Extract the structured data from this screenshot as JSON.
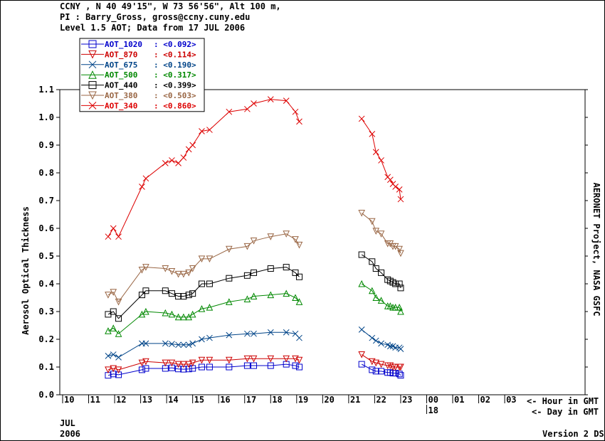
{
  "header": {
    "line1": "CCNY , N 40 49'15\", W 73 56'56\", Alt 100 m,",
    "line2": "PI : Barry_Gross, gross@ccny.cuny.edu",
    "line3": "Level 1.5 AOT; Data from 17 JUL 2006"
  },
  "footer": {
    "month": "JUL",
    "year": "2006",
    "version": "Version 2 DS",
    "hour_note": "<- Hour in GMT",
    "day_note": "<- Day in GMT",
    "day_label": "18",
    "side_label": "AERONET Project, NASA GSFC"
  },
  "chart_data": {
    "type": "line",
    "title": "",
    "xlabel": "",
    "ylabel": "Aerosol Optical Thickness",
    "xlim": [
      10,
      4
    ],
    "x_ticks": [
      "10",
      "11",
      "12",
      "13",
      "14",
      "15",
      "16",
      "17",
      "18",
      "19",
      "20",
      "21",
      "22",
      "23",
      "00",
      "01",
      "02",
      "03"
    ],
    "ylim": [
      0.0,
      1.1
    ],
    "y_ticks": [
      "0.0",
      "0.1",
      "0.2",
      "0.3",
      "0.4",
      "0.5",
      "0.6",
      "0.7",
      "0.8",
      "0.9",
      "1.0",
      "1.1"
    ],
    "legend_position": "top-left",
    "series": [
      {
        "name": "AOT_1020",
        "mean": "<0.092>",
        "color": "#0000cc",
        "marker": "square",
        "x": [
          11.75,
          11.95,
          12.15,
          13.05,
          13.2,
          13.95,
          14.2,
          14.45,
          14.65,
          14.85,
          15.0,
          15.35,
          15.65,
          16.4,
          17.1,
          17.35,
          18.0,
          18.6,
          18.95,
          19.1,
          21.5,
          21.9,
          22.05,
          22.25,
          22.5,
          22.6,
          22.7,
          22.8,
          22.95,
          23.0
        ],
        "y": [
          0.07,
          0.075,
          0.072,
          0.09,
          0.095,
          0.095,
          0.097,
          0.093,
          0.092,
          0.093,
          0.095,
          0.1,
          0.1,
          0.1,
          0.105,
          0.105,
          0.105,
          0.11,
          0.105,
          0.1,
          0.11,
          0.09,
          0.085,
          0.085,
          0.08,
          0.08,
          0.078,
          0.078,
          0.075,
          0.07
        ]
      },
      {
        "name": "AOT_870",
        "mean": "<0.114>",
        "color": "#cc0000",
        "marker": "triangle-down",
        "x": [
          11.75,
          11.95,
          12.15,
          13.05,
          13.2,
          13.95,
          14.2,
          14.45,
          14.65,
          14.85,
          15.0,
          15.35,
          15.65,
          16.4,
          17.1,
          17.35,
          18.0,
          18.6,
          18.95,
          19.1,
          21.5,
          21.9,
          22.05,
          22.25,
          22.5,
          22.6,
          22.7,
          22.8,
          22.95,
          23.0
        ],
        "y": [
          0.09,
          0.095,
          0.09,
          0.115,
          0.12,
          0.115,
          0.115,
          0.11,
          0.11,
          0.11,
          0.115,
          0.125,
          0.125,
          0.125,
          0.13,
          0.13,
          0.13,
          0.13,
          0.13,
          0.125,
          0.145,
          0.12,
          0.115,
          0.11,
          0.105,
          0.105,
          0.1,
          0.1,
          0.1,
          0.1
        ]
      },
      {
        "name": "AOT_675",
        "mean": "<0.190>",
        "color": "#004488",
        "marker": "x",
        "x": [
          11.75,
          11.95,
          12.15,
          13.05,
          13.2,
          13.95,
          14.2,
          14.45,
          14.65,
          14.85,
          15.0,
          15.35,
          15.65,
          16.4,
          17.1,
          17.35,
          18.0,
          18.6,
          18.95,
          19.1,
          21.5,
          21.9,
          22.05,
          22.25,
          22.5,
          22.6,
          22.7,
          22.8,
          22.95,
          23.0
        ],
        "y": [
          0.14,
          0.145,
          0.135,
          0.185,
          0.185,
          0.185,
          0.183,
          0.18,
          0.18,
          0.18,
          0.185,
          0.2,
          0.205,
          0.215,
          0.22,
          0.22,
          0.225,
          0.225,
          0.22,
          0.205,
          0.235,
          0.205,
          0.195,
          0.185,
          0.18,
          0.175,
          0.175,
          0.17,
          0.17,
          0.165
        ]
      },
      {
        "name": "AOT_500",
        "mean": "<0.317>",
        "color": "#008800",
        "marker": "triangle-up",
        "x": [
          11.75,
          11.95,
          12.15,
          13.05,
          13.2,
          13.95,
          14.2,
          14.45,
          14.65,
          14.85,
          15.0,
          15.35,
          15.65,
          16.4,
          17.1,
          17.35,
          18.0,
          18.6,
          18.95,
          19.1,
          21.5,
          21.9,
          22.05,
          22.25,
          22.5,
          22.6,
          22.7,
          22.8,
          22.95,
          23.0
        ],
        "y": [
          0.23,
          0.24,
          0.22,
          0.29,
          0.3,
          0.295,
          0.29,
          0.28,
          0.28,
          0.28,
          0.29,
          0.31,
          0.315,
          0.335,
          0.345,
          0.355,
          0.36,
          0.365,
          0.35,
          0.335,
          0.4,
          0.375,
          0.35,
          0.34,
          0.32,
          0.32,
          0.315,
          0.315,
          0.315,
          0.3
        ]
      },
      {
        "name": "AOT_440",
        "mean": "<0.399>",
        "color": "#000000",
        "marker": "square",
        "x": [
          11.75,
          11.95,
          12.15,
          13.05,
          13.2,
          13.95,
          14.2,
          14.45,
          14.65,
          14.85,
          15.0,
          15.35,
          15.65,
          16.4,
          17.1,
          17.35,
          18.0,
          18.6,
          18.95,
          19.1,
          21.5,
          21.9,
          22.05,
          22.25,
          22.5,
          22.6,
          22.7,
          22.8,
          22.95,
          23.0
        ],
        "y": [
          0.29,
          0.3,
          0.275,
          0.36,
          0.375,
          0.375,
          0.365,
          0.355,
          0.355,
          0.36,
          0.365,
          0.4,
          0.4,
          0.42,
          0.43,
          0.44,
          0.455,
          0.46,
          0.44,
          0.425,
          0.505,
          0.48,
          0.455,
          0.44,
          0.415,
          0.41,
          0.405,
          0.4,
          0.4,
          0.385
        ]
      },
      {
        "name": "AOT_380",
        "mean": "<0.503>",
        "color": "#996644",
        "marker": "triangle-down",
        "x": [
          11.75,
          11.95,
          12.15,
          13.05,
          13.2,
          13.95,
          14.2,
          14.45,
          14.65,
          14.85,
          15.0,
          15.35,
          15.65,
          16.4,
          17.1,
          17.35,
          18.0,
          18.6,
          18.95,
          19.1,
          21.5,
          21.9,
          22.05,
          22.25,
          22.5,
          22.6,
          22.7,
          22.8,
          22.95,
          23.0
        ],
        "y": [
          0.36,
          0.37,
          0.335,
          0.45,
          0.46,
          0.455,
          0.445,
          0.435,
          0.435,
          0.44,
          0.455,
          0.49,
          0.49,
          0.525,
          0.535,
          0.555,
          0.57,
          0.58,
          0.56,
          0.54,
          0.655,
          0.625,
          0.59,
          0.58,
          0.545,
          0.545,
          0.535,
          0.535,
          0.525,
          0.51
        ]
      },
      {
        "name": "AOT_340",
        "mean": "<0.860>",
        "color": "#dd0000",
        "marker": "x",
        "x": [
          11.75,
          11.95,
          12.15,
          13.05,
          13.2,
          13.95,
          14.2,
          14.45,
          14.65,
          14.85,
          15.0,
          15.35,
          15.65,
          16.4,
          17.1,
          17.35,
          18.0,
          18.6,
          18.95,
          19.1,
          21.5,
          21.9,
          22.05,
          22.25,
          22.5,
          22.6,
          22.7,
          22.8,
          22.95,
          23.0
        ],
        "y": [
          0.57,
          0.6,
          0.57,
          0.75,
          0.78,
          0.835,
          0.845,
          0.835,
          0.855,
          0.885,
          0.9,
          0.95,
          0.955,
          1.02,
          1.03,
          1.05,
          1.065,
          1.06,
          1.02,
          0.985,
          0.995,
          0.94,
          0.875,
          0.845,
          0.785,
          0.775,
          0.76,
          0.75,
          0.74,
          0.705
        ]
      }
    ]
  }
}
